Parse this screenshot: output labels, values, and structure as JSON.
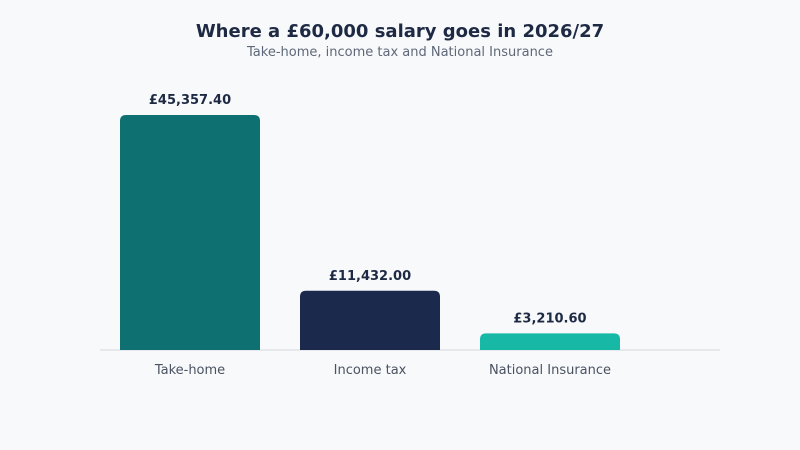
{
  "colors": {
    "background": "#f8f9fb",
    "title": "#1e2a44",
    "subtitle": "#5f6878",
    "value_label": "#1e2a44",
    "category_label": "#4a5262",
    "baseline": "#dfe3e8"
  },
  "chart_data": {
    "type": "bar",
    "title": "Where a £60,000 salary goes in 2026/27",
    "subtitle": "Take-home, income tax and National Insurance",
    "xlabel": "",
    "ylabel": "",
    "grid": false,
    "legend": "none",
    "categories": [
      "Take-home",
      "Income tax",
      "National Insurance"
    ],
    "values": [
      45357.4,
      11432.0,
      3210.6
    ],
    "value_labels": [
      "£45,357.40",
      "£11,432.00",
      "£3,210.60"
    ],
    "bar_colors": [
      "#0e7070",
      "#1b2a4c",
      "#17b8a6"
    ],
    "ylim": [
      0,
      45357.4
    ]
  }
}
